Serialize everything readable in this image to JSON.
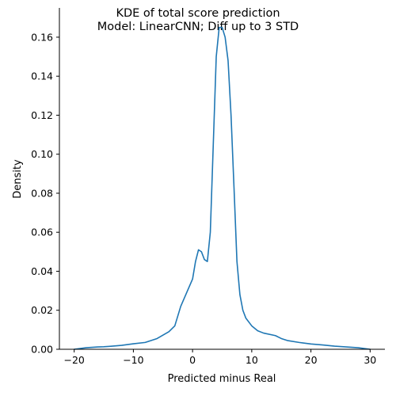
{
  "chart_data": {
    "type": "line",
    "title": "KDE of total score prediction",
    "subtitle": "Model: LinearCNN; Diff up to 3 STD",
    "xlabel": "Predicted minus Real",
    "ylabel": "Density",
    "xlim": [
      -22.5,
      32.5
    ],
    "ylim": [
      0,
      0.175
    ],
    "x_ticks": [
      -20,
      -10,
      0,
      10,
      20,
      30
    ],
    "y_ticks": [
      0.0,
      0.02,
      0.04,
      0.06,
      0.08,
      0.1,
      0.12,
      0.14,
      0.16
    ],
    "y_tick_labels": [
      "0.00",
      "0.02",
      "0.04",
      "0.06",
      "0.08",
      "0.10",
      "0.12",
      "0.14",
      "0.16"
    ],
    "grid": false,
    "color": "#1f77b4",
    "series": [
      {
        "x": [
          -20,
          -18,
          -16,
          -15,
          -14,
          -12,
          -10,
          -8,
          -6,
          -4,
          -3,
          -2,
          -1,
          0,
          0.5,
          1,
          1.5,
          2,
          2.5,
          3,
          3.5,
          4,
          4.5,
          5,
          5.5,
          6,
          6.5,
          7,
          7.5,
          8,
          8.5,
          9,
          10,
          11,
          12,
          14,
          15,
          16,
          18,
          20,
          22,
          24,
          26,
          28,
          30
        ],
        "y": [
          0.0,
          0.0008,
          0.0012,
          0.0013,
          0.0015,
          0.002,
          0.0028,
          0.0035,
          0.0055,
          0.009,
          0.012,
          0.022,
          0.029,
          0.036,
          0.045,
          0.051,
          0.05,
          0.046,
          0.045,
          0.06,
          0.105,
          0.15,
          0.165,
          0.165,
          0.16,
          0.148,
          0.12,
          0.083,
          0.045,
          0.028,
          0.02,
          0.016,
          0.012,
          0.0095,
          0.0083,
          0.007,
          0.0055,
          0.0045,
          0.0035,
          0.0027,
          0.0022,
          0.0016,
          0.0012,
          0.0008,
          0.0
        ]
      }
    ]
  }
}
